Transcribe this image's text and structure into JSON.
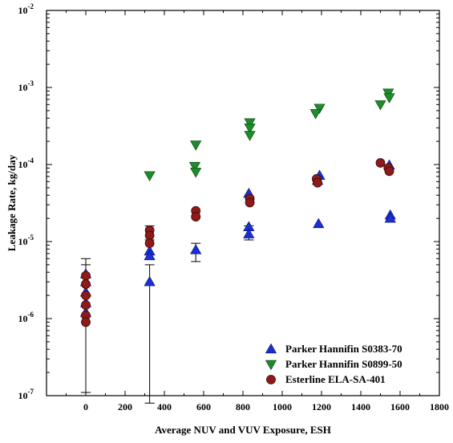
{
  "chart_data": {
    "type": "scatter",
    "xlabel": "Average NUV and VUV Exposure, ESH",
    "ylabel": "Leakage Rate, kg/day",
    "xlim": [
      -200,
      1800
    ],
    "ylim": [
      1e-07,
      0.01
    ],
    "y_scale": "log",
    "x_ticks": [
      0,
      200,
      400,
      600,
      800,
      1000,
      1200,
      1400,
      1600,
      1800
    ],
    "x_tick_labels": [
      "0",
      "200",
      "400",
      "600",
      "800",
      "1000",
      "1200",
      "1400",
      "1600",
      "1800"
    ],
    "y_ticks": [
      {
        "value": 1e-07,
        "base": "10",
        "exp": "-7"
      },
      {
        "value": 1e-06,
        "base": "10",
        "exp": "-6"
      },
      {
        "value": 1e-05,
        "base": "10",
        "exp": "-5"
      },
      {
        "value": 0.0001,
        "base": "10",
        "exp": "-4"
      },
      {
        "value": 0.001,
        "base": "10",
        "exp": "-3"
      },
      {
        "value": 0.01,
        "base": "10",
        "exp": "-2"
      }
    ],
    "grid": false,
    "legend_position": "bottom-right",
    "series": [
      {
        "name": "Parker Hannifin S0383-70",
        "marker": "triangle-up",
        "color": "#1a2fd6",
        "points": [
          {
            "x": 0,
            "y": 3.8e-06,
            "yerr": [
              1.1e-07,
              6e-06
            ]
          },
          {
            "x": 0,
            "y": 3e-06
          },
          {
            "x": 0,
            "y": 2.2e-06
          },
          {
            "x": 0,
            "y": 1.6e-06
          },
          {
            "x": 0,
            "y": 1.2e-06
          },
          {
            "x": 325,
            "y": 7.5e-06
          },
          {
            "x": 325,
            "y": 6.5e-06
          },
          {
            "x": 325,
            "y": 3e-06,
            "yerr": [
              8e-08,
              5e-06
            ]
          },
          {
            "x": 560,
            "y": 7.8e-06,
            "yerr": [
              5.5e-06,
              9.5e-06
            ]
          },
          {
            "x": 830,
            "y": 4.2e-05
          },
          {
            "x": 830,
            "y": 1.55e-05
          },
          {
            "x": 830,
            "y": 1.25e-05,
            "yerr": [
              1.05e-05,
              1.6e-05
            ]
          },
          {
            "x": 1190,
            "y": 7.2e-05
          },
          {
            "x": 1180,
            "y": 6.2e-05
          },
          {
            "x": 1185,
            "y": 1.7e-05
          },
          {
            "x": 1545,
            "y": 9.8e-05
          },
          {
            "x": 1550,
            "y": 2.2e-05
          },
          {
            "x": 1550,
            "y": 2e-05
          }
        ]
      },
      {
        "name": "Parker Hannifin S0899-50",
        "marker": "triangle-down",
        "color": "#1e8c2a",
        "points": [
          {
            "x": 325,
            "y": 7.2e-05
          },
          {
            "x": 560,
            "y": 0.00018
          },
          {
            "x": 555,
            "y": 9.5e-05
          },
          {
            "x": 560,
            "y": 8e-05
          },
          {
            "x": 835,
            "y": 0.00035
          },
          {
            "x": 835,
            "y": 0.0003
          },
          {
            "x": 835,
            "y": 0.00024
          },
          {
            "x": 1190,
            "y": 0.00054
          },
          {
            "x": 1170,
            "y": 0.00046
          },
          {
            "x": 1540,
            "y": 0.00085
          },
          {
            "x": 1545,
            "y": 0.00074
          },
          {
            "x": 1500,
            "y": 0.0006
          }
        ]
      },
      {
        "name": "Esterline ELA-SA-401",
        "marker": "circle",
        "color": "#8e1a1a",
        "points": [
          {
            "x": 0,
            "y": 3.6e-06,
            "yerr": [
              9e-07,
              5e-06
            ]
          },
          {
            "x": 0,
            "y": 2.8e-06
          },
          {
            "x": 0,
            "y": 2e-06
          },
          {
            "x": 0,
            "y": 1.5e-06
          },
          {
            "x": 0,
            "y": 1.1e-06
          },
          {
            "x": 0,
            "y": 9e-07
          },
          {
            "x": 325,
            "y": 1.4e-05,
            "yerr": [
              1.05e-05,
              1.6e-05
            ]
          },
          {
            "x": 325,
            "y": 1.2e-05
          },
          {
            "x": 325,
            "y": 9.5e-06
          },
          {
            "x": 560,
            "y": 2.5e-05
          },
          {
            "x": 560,
            "y": 2.1e-05
          },
          {
            "x": 835,
            "y": 3.6e-05
          },
          {
            "x": 835,
            "y": 3.2e-05
          },
          {
            "x": 1175,
            "y": 6.5e-05
          },
          {
            "x": 1180,
            "y": 5.8e-05
          },
          {
            "x": 1500,
            "y": 0.000105
          },
          {
            "x": 1540,
            "y": 9e-05
          },
          {
            "x": 1545,
            "y": 8.2e-05
          }
        ]
      }
    ]
  }
}
